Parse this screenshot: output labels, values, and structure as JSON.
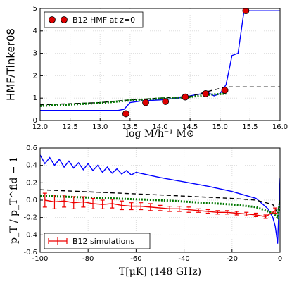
{
  "chart_data": [
    {
      "type": "line",
      "ylabel": "HMF/Tinker08",
      "xlabel": "log M/h⁻¹ M⊙",
      "xlim": [
        12,
        16
      ],
      "ylim": [
        0,
        5
      ],
      "xticks": [
        {
          "value": 12,
          "label": "12.0"
        },
        12.5,
        {
          "value": 13,
          "label": "13.0"
        },
        13.5,
        {
          "value": 14,
          "label": "14.0"
        },
        14.5,
        {
          "value": 15,
          "label": "15.0"
        },
        15.5,
        {
          "value": 16,
          "label": "16.0"
        }
      ],
      "yticks": [
        0,
        1,
        2,
        3,
        4,
        5
      ],
      "grid": true,
      "legend": "upper left",
      "series": [
        {
          "style": "solid",
          "color": "#0000ff",
          "x": [
            12,
            13.3,
            13.4,
            13.5,
            13.7,
            14.0,
            14.3,
            14.6,
            14.8,
            14.9,
            15.0,
            15.1,
            15.2,
            15.3,
            15.4,
            16
          ],
          "values": [
            0.45,
            0.45,
            0.5,
            0.8,
            0.88,
            0.92,
            1.0,
            1.15,
            1.25,
            1.1,
            1.2,
            1.6,
            2.9,
            3.0,
            4.9,
            4.9
          ]
        },
        {
          "style": "dashed",
          "color": "#000000",
          "x": [
            12,
            13.0,
            13.5,
            14.0,
            14.5,
            14.8,
            15.1,
            16
          ],
          "values": [
            0.7,
            0.8,
            0.92,
            1.0,
            1.08,
            1.3,
            1.5,
            1.5
          ]
        },
        {
          "style": "dotted",
          "color": "#007700",
          "x": [
            12,
            13.0,
            13.5,
            14.0,
            14.5,
            14.8,
            15.1
          ],
          "values": [
            0.65,
            0.78,
            0.9,
            0.98,
            1.05,
            1.15,
            1.2
          ]
        },
        {
          "style": "markers",
          "color": "#dd0000",
          "name": "B12 HMF at z=0",
          "x": [
            13.43,
            13.76,
            14.09,
            14.42,
            14.76,
            15.08,
            15.43
          ],
          "values": [
            0.3,
            0.8,
            0.85,
            1.05,
            1.2,
            1.35,
            4.9
          ]
        }
      ]
    },
    {
      "type": "line",
      "ylabel": "p_T / p_T^fid − 1",
      "xlabel": "T[μK] (148 GHz)",
      "xlim": [
        -100,
        0
      ],
      "ylim": [
        -0.6,
        0.6
      ],
      "xticks": [
        -100,
        -80,
        -60,
        -40,
        -20,
        0
      ],
      "yticks": [
        -0.6,
        -0.4,
        -0.2,
        {
          "value": 0,
          "label": "0.0"
        },
        0.2,
        0.4,
        0.6
      ],
      "grid": true,
      "legend": "lower left",
      "series": [
        {
          "style": "solid",
          "color": "#0000ff",
          "x": [
            -100,
            -98,
            -96,
            -94,
            -92,
            -90,
            -88,
            -86,
            -84,
            -82,
            -80,
            -78,
            -76,
            -74,
            -72,
            -70,
            -68,
            -66,
            -64,
            -62,
            -60,
            -50,
            -40,
            -30,
            -20,
            -10,
            -5,
            -3,
            -2,
            -1,
            0
          ],
          "values": [
            0.52,
            0.42,
            0.49,
            0.4,
            0.47,
            0.38,
            0.45,
            0.37,
            0.43,
            0.35,
            0.42,
            0.34,
            0.4,
            0.32,
            0.38,
            0.31,
            0.36,
            0.3,
            0.34,
            0.29,
            0.32,
            0.26,
            0.21,
            0.16,
            0.1,
            0.02,
            -0.1,
            -0.2,
            -0.3,
            -0.5,
            0.25
          ]
        },
        {
          "style": "dashed",
          "color": "#000000",
          "x": [
            -100,
            -50,
            -20,
            -10,
            -3,
            -1,
            0
          ],
          "values": [
            0.12,
            0.06,
            0.02,
            0.0,
            -0.05,
            -0.15,
            0.0
          ]
        },
        {
          "style": "dotted",
          "color": "#007700",
          "x": [
            -100,
            -50,
            -20,
            -10,
            -3,
            -1,
            0
          ],
          "values": [
            0.05,
            0.0,
            -0.05,
            -0.08,
            -0.15,
            -0.2,
            0.0
          ]
        },
        {
          "style": "errorbar",
          "color": "#ee0000",
          "name": "B12 simulations",
          "x": [
            -98,
            -94,
            -90,
            -86,
            -82,
            -78,
            -74,
            -70,
            -66,
            -62,
            -58,
            -54,
            -50,
            -46,
            -42,
            -38,
            -34,
            -30,
            -26,
            -22,
            -18,
            -14,
            -10,
            -6,
            -2
          ],
          "values": [
            0.0,
            -0.02,
            -0.01,
            -0.03,
            -0.02,
            -0.04,
            -0.05,
            -0.04,
            -0.06,
            -0.07,
            -0.07,
            -0.08,
            -0.09,
            -0.1,
            -0.1,
            -0.11,
            -0.12,
            -0.13,
            -0.14,
            -0.14,
            -0.15,
            -0.16,
            -0.17,
            -0.19,
            -0.12
          ],
          "errors": [
            0.08,
            0.08,
            0.07,
            0.07,
            0.06,
            0.06,
            0.05,
            0.05,
            0.05,
            0.04,
            0.04,
            0.04,
            0.03,
            0.03,
            0.03,
            0.03,
            0.02,
            0.02,
            0.02,
            0.02,
            0.02,
            0.02,
            0.02,
            0.02,
            0.03
          ]
        }
      ]
    }
  ]
}
